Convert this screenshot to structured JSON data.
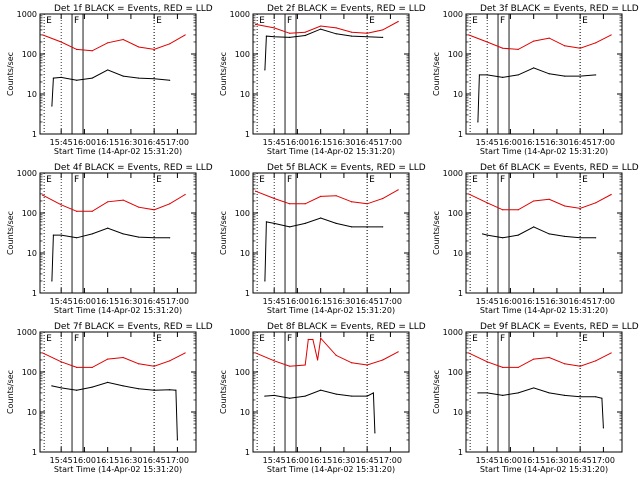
{
  "chart_data": [
    {
      "type": "line",
      "title": "Det 1f BLACK = Events, RED = LLD",
      "xlabel": "Start Time (14-Apr-02 15:31:20)",
      "ylabel": "Counts/sec",
      "x_ticks": [
        "15:45",
        "16:00",
        "16:15",
        "16:30",
        "16:45",
        "17:00"
      ],
      "y_ticks": [
        "1",
        "10",
        "100",
        "1000"
      ],
      "ylim": [
        1,
        1000
      ],
      "scale_y": "log",
      "markers": [
        {
          "label": "E",
          "time": "15:34"
        },
        {
          "label": "F",
          "time": "15:52"
        },
        {
          "label": "E",
          "time": "16:45"
        }
      ],
      "series": [
        {
          "name": "LLD",
          "color": "#e00000",
          "x": [
            "15:33",
            "15:45",
            "15:55",
            "16:05",
            "16:15",
            "16:25",
            "16:35",
            "16:45",
            "16:55",
            "17:05"
          ],
          "values": [
            300,
            200,
            130,
            120,
            190,
            230,
            150,
            130,
            180,
            300
          ]
        },
        {
          "name": "Events",
          "color": "#000000",
          "x": [
            "15:39",
            "15:40",
            "15:45",
            "15:55",
            "16:05",
            "16:15",
            "16:25",
            "16:35",
            "16:45",
            "16:55"
          ],
          "values": [
            5,
            25,
            26,
            22,
            25,
            40,
            28,
            25,
            24,
            22
          ]
        }
      ]
    },
    {
      "type": "line",
      "title": "Det 2f BLACK = Events, RED = LLD",
      "xlabel": "Start Time (14-Apr-02 15:31:20)",
      "ylabel": "Counts/sec",
      "x_ticks": [
        "15:45",
        "16:00",
        "16:15",
        "16:30",
        "16:45",
        "17:00"
      ],
      "y_ticks": [
        "1",
        "10",
        "100",
        "1000"
      ],
      "ylim": [
        1,
        1000
      ],
      "scale_y": "log",
      "markers": [
        {
          "label": "E",
          "time": "15:34"
        },
        {
          "label": "F",
          "time": "15:52"
        },
        {
          "label": "E",
          "time": "16:45"
        }
      ],
      "series": [
        {
          "name": "LLD",
          "color": "#e00000",
          "x": [
            "15:33",
            "15:45",
            "15:55",
            "16:05",
            "16:15",
            "16:25",
            "16:35",
            "16:45",
            "16:55",
            "17:05"
          ],
          "values": [
            550,
            450,
            330,
            350,
            500,
            450,
            350,
            330,
            400,
            650
          ]
        },
        {
          "name": "Events",
          "color": "#000000",
          "x": [
            "15:39",
            "15:40",
            "15:45",
            "15:55",
            "16:05",
            "16:15",
            "16:25",
            "16:35",
            "16:45",
            "16:55"
          ],
          "values": [
            40,
            280,
            270,
            260,
            290,
            420,
            320,
            280,
            270,
            260
          ]
        }
      ]
    },
    {
      "type": "line",
      "title": "Det 3f BLACK = Events, RED = LLD",
      "xlabel": "Start Time (14-Apr-02 15:31:20)",
      "ylabel": "Counts/sec",
      "x_ticks": [
        "15:45",
        "16:00",
        "16:15",
        "16:30",
        "16:45",
        "17:00"
      ],
      "y_ticks": [
        "1",
        "10",
        "100",
        "1000"
      ],
      "ylim": [
        1,
        1000
      ],
      "scale_y": "log",
      "markers": [
        {
          "label": "E",
          "time": "15:34"
        },
        {
          "label": "F",
          "time": "15:52"
        },
        {
          "label": "E",
          "time": "16:45"
        }
      ],
      "series": [
        {
          "name": "LLD",
          "color": "#e00000",
          "x": [
            "15:33",
            "15:45",
            "15:55",
            "16:05",
            "16:15",
            "16:25",
            "16:35",
            "16:45",
            "16:55",
            "17:05"
          ],
          "values": [
            300,
            200,
            140,
            130,
            210,
            250,
            160,
            140,
            190,
            300
          ]
        },
        {
          "name": "Events",
          "color": "#000000",
          "x": [
            "15:39",
            "15:40",
            "15:45",
            "15:55",
            "16:05",
            "16:15",
            "16:25",
            "16:35",
            "16:45",
            "16:55"
          ],
          "values": [
            2,
            30,
            30,
            26,
            30,
            45,
            32,
            28,
            28,
            30
          ]
        }
      ]
    },
    {
      "type": "line",
      "title": "Det 4f BLACK = Events, RED = LLD",
      "xlabel": "Start Time (14-Apr-02 15:31:20)",
      "ylabel": "Counts/sec",
      "x_ticks": [
        "15:45",
        "16:00",
        "16:15",
        "16:30",
        "16:45",
        "17:00"
      ],
      "y_ticks": [
        "1",
        "10",
        "100",
        "1000"
      ],
      "ylim": [
        1,
        1000
      ],
      "scale_y": "log",
      "markers": [
        {
          "label": "E",
          "time": "15:34"
        },
        {
          "label": "F",
          "time": "15:52"
        },
        {
          "label": "E",
          "time": "16:45"
        }
      ],
      "series": [
        {
          "name": "LLD",
          "color": "#e00000",
          "x": [
            "15:33",
            "15:45",
            "15:55",
            "16:05",
            "16:15",
            "16:25",
            "16:35",
            "16:45",
            "16:55",
            "17:05"
          ],
          "values": [
            280,
            160,
            110,
            110,
            190,
            210,
            140,
            120,
            170,
            290
          ]
        },
        {
          "name": "Events",
          "color": "#000000",
          "x": [
            "15:39",
            "15:40",
            "15:45",
            "15:55",
            "16:05",
            "16:15",
            "16:25",
            "16:35",
            "16:45",
            "16:55"
          ],
          "values": [
            2,
            28,
            28,
            24,
            30,
            42,
            30,
            25,
            24,
            24
          ]
        }
      ]
    },
    {
      "type": "line",
      "title": "Det 5f BLACK = Events, RED = LLD",
      "xlabel": "Start Time (14-Apr-02 15:31:20)",
      "ylabel": "Counts/sec",
      "x_ticks": [
        "15:45",
        "16:00",
        "16:15",
        "16:30",
        "16:45",
        "17:00"
      ],
      "y_ticks": [
        "1",
        "10",
        "100",
        "1000"
      ],
      "ylim": [
        1,
        1000
      ],
      "scale_y": "log",
      "markers": [
        {
          "label": "E",
          "time": "15:34"
        },
        {
          "label": "F",
          "time": "15:52"
        },
        {
          "label": "E",
          "time": "16:45"
        }
      ],
      "series": [
        {
          "name": "LLD",
          "color": "#e00000",
          "x": [
            "15:33",
            "15:45",
            "15:55",
            "16:05",
            "16:15",
            "16:25",
            "16:35",
            "16:45",
            "16:55",
            "17:05"
          ],
          "values": [
            350,
            230,
            170,
            170,
            260,
            270,
            190,
            170,
            230,
            380
          ]
        },
        {
          "name": "Events",
          "color": "#000000",
          "x": [
            "15:39",
            "15:40",
            "15:45",
            "15:55",
            "16:05",
            "16:15",
            "16:25",
            "16:35",
            "16:45",
            "16:55"
          ],
          "values": [
            2,
            60,
            55,
            45,
            55,
            75,
            55,
            45,
            45,
            45
          ]
        }
      ]
    },
    {
      "type": "line",
      "title": "Det 6f BLACK = Events, RED = LLD",
      "xlabel": "Start Time (14-Apr-02 15:31:20)",
      "ylabel": "Counts/sec",
      "x_ticks": [
        "15:45",
        "16:00",
        "16:15",
        "16:30",
        "16:45",
        "17:00"
      ],
      "y_ticks": [
        "1",
        "10",
        "100",
        "1000"
      ],
      "ylim": [
        1,
        1000
      ],
      "scale_y": "log",
      "markers": [
        {
          "label": "E",
          "time": "15:34"
        },
        {
          "label": "F",
          "time": "15:52"
        },
        {
          "label": "E",
          "time": "16:45"
        }
      ],
      "series": [
        {
          "name": "LLD",
          "color": "#e00000",
          "x": [
            "15:33",
            "15:45",
            "15:55",
            "16:05",
            "16:15",
            "16:25",
            "16:35",
            "16:45",
            "16:55",
            "17:05"
          ],
          "values": [
            300,
            180,
            120,
            120,
            200,
            220,
            150,
            130,
            180,
            290
          ]
        },
        {
          "name": "Events",
          "color": "#000000",
          "x": [
            "15:42",
            "15:45",
            "15:55",
            "16:05",
            "16:15",
            "16:25",
            "16:35",
            "16:45",
            "16:55"
          ],
          "values": [
            30,
            28,
            24,
            28,
            45,
            30,
            26,
            24,
            24
          ]
        }
      ]
    },
    {
      "type": "line",
      "title": "Det 7f BLACK = Events, RED = LLD",
      "xlabel": "Start Time (14-Apr-02 15:31:20)",
      "ylabel": "Counts/sec",
      "x_ticks": [
        "15:45",
        "16:00",
        "16:15",
        "16:30",
        "16:45",
        "17:00"
      ],
      "y_ticks": [
        "1",
        "10",
        "100",
        "1000"
      ],
      "ylim": [
        1,
        1000
      ],
      "scale_y": "log",
      "markers": [
        {
          "label": "E",
          "time": "15:34"
        },
        {
          "label": "F",
          "time": "15:52"
        },
        {
          "label": "E",
          "time": "16:45"
        }
      ],
      "series": [
        {
          "name": "LLD",
          "color": "#e00000",
          "x": [
            "15:33",
            "15:45",
            "15:55",
            "16:05",
            "16:15",
            "16:25",
            "16:35",
            "16:45",
            "16:55",
            "17:05"
          ],
          "values": [
            300,
            180,
            130,
            130,
            210,
            230,
            160,
            140,
            190,
            300
          ]
        },
        {
          "name": "Events",
          "color": "#000000",
          "x": [
            "15:39",
            "15:45",
            "15:55",
            "16:05",
            "16:15",
            "16:25",
            "16:35",
            "16:45",
            "16:55",
            "16:59",
            "17:00"
          ],
          "values": [
            45,
            40,
            35,
            42,
            55,
            45,
            38,
            35,
            36,
            35,
            2
          ]
        }
      ]
    },
    {
      "type": "line",
      "title": "Det 8f BLACK = Events, RED = LLD",
      "xlabel": "Start Time (14-Apr-02 15:31:20)",
      "ylabel": "Counts/sec",
      "x_ticks": [
        "15:45",
        "16:00",
        "16:15",
        "16:30",
        "16:45",
        "17:00"
      ],
      "y_ticks": [
        "1",
        "10",
        "100",
        "1000"
      ],
      "ylim": [
        1,
        1000
      ],
      "scale_y": "log",
      "markers": [
        {
          "label": "E",
          "time": "15:34"
        },
        {
          "label": "F",
          "time": "15:52"
        },
        {
          "label": "E",
          "time": "16:45"
        }
      ],
      "series": [
        {
          "name": "LLD",
          "color": "#e00000",
          "x": [
            "15:33",
            "15:45",
            "15:55",
            "16:05",
            "16:07",
            "16:10",
            "16:13",
            "16:15",
            "16:25",
            "16:35",
            "16:45",
            "16:55",
            "17:05"
          ],
          "values": [
            300,
            190,
            140,
            150,
            650,
            650,
            200,
            700,
            260,
            170,
            150,
            200,
            320
          ]
        },
        {
          "name": "Events",
          "color": "#000000",
          "x": [
            "15:39",
            "15:45",
            "15:55",
            "16:05",
            "16:15",
            "16:25",
            "16:35",
            "16:45",
            "16:49",
            "16:50"
          ],
          "values": [
            25,
            26,
            22,
            25,
            35,
            28,
            25,
            25,
            30,
            3
          ]
        }
      ]
    },
    {
      "type": "line",
      "title": "Det 9f BLACK = Events, RED = LLD",
      "xlabel": "Start Time (14-Apr-02 15:31:20)",
      "ylabel": "Counts/sec",
      "x_ticks": [
        "15:45",
        "16:00",
        "16:15",
        "16:30",
        "16:45",
        "17:00"
      ],
      "y_ticks": [
        "1",
        "10",
        "100",
        "1000"
      ],
      "ylim": [
        1,
        1000
      ],
      "scale_y": "log",
      "markers": [
        {
          "label": "E",
          "time": "15:34"
        },
        {
          "label": "F",
          "time": "15:52"
        },
        {
          "label": "E",
          "time": "16:45"
        }
      ],
      "series": [
        {
          "name": "LLD",
          "color": "#e00000",
          "x": [
            "15:33",
            "15:45",
            "15:55",
            "16:05",
            "16:15",
            "16:25",
            "16:35",
            "16:45",
            "16:55",
            "17:05"
          ],
          "values": [
            300,
            180,
            130,
            130,
            210,
            230,
            160,
            140,
            190,
            300
          ]
        },
        {
          "name": "Events",
          "color": "#000000",
          "x": [
            "15:39",
            "15:45",
            "15:55",
            "16:05",
            "16:15",
            "16:25",
            "16:35",
            "16:45",
            "16:55",
            "16:59",
            "17:00"
          ],
          "values": [
            30,
            30,
            26,
            30,
            40,
            30,
            26,
            24,
            24,
            22,
            4
          ]
        }
      ]
    }
  ]
}
